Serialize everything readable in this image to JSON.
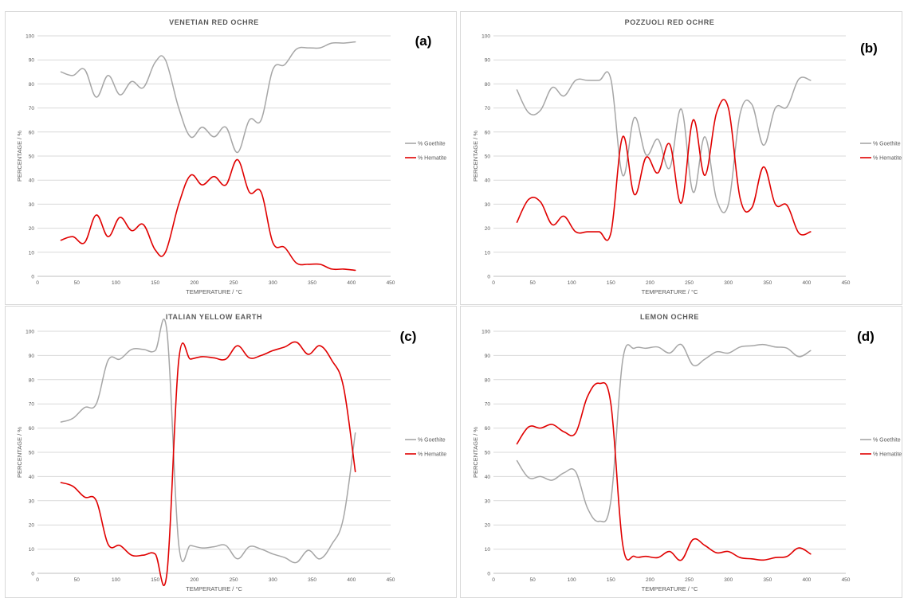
{
  "colors": {
    "goethite": "#a6a6a6",
    "hematite": "#e00000",
    "grid": "#d9d9d9",
    "axis": "#bfbfbf",
    "text": "#595959",
    "border": "#d9d9d9"
  },
  "chart_data": [
    {
      "type": "line",
      "panel": "(a)",
      "title": "VENETIAN RED OCHRE",
      "xlabel": "TEMPERATURE / °C",
      "ylabel": "PERCENTAGE / %",
      "xlim": [
        0,
        450
      ],
      "ylim": [
        0,
        100
      ],
      "xticks": [
        0,
        50,
        100,
        150,
        200,
        250,
        300,
        350,
        400,
        450
      ],
      "yticks": [
        0,
        10,
        20,
        30,
        40,
        50,
        60,
        70,
        80,
        90,
        100
      ],
      "grid": true,
      "legend": "right",
      "series": [
        {
          "name": "% Goethite",
          "x": [
            30,
            45,
            60,
            75,
            90,
            105,
            120,
            135,
            150,
            163,
            180,
            195,
            210,
            225,
            240,
            255,
            270,
            285,
            300,
            315,
            330,
            345,
            360,
            375,
            390,
            405
          ],
          "y": [
            85,
            83.5,
            86,
            74.5,
            83.5,
            75.5,
            81,
            78.5,
            89,
            90,
            70,
            58,
            62,
            58,
            62,
            51.5,
            65,
            65,
            86,
            88,
            94.5,
            95,
            95,
            97,
            97,
            97.5
          ]
        },
        {
          "name": "% Hematite",
          "x": [
            30,
            45,
            60,
            75,
            90,
            105,
            120,
            135,
            150,
            163,
            180,
            195,
            210,
            225,
            240,
            255,
            270,
            285,
            300,
            315,
            330,
            345,
            360,
            375,
            390,
            405
          ],
          "y": [
            15,
            16.5,
            14,
            25.5,
            16.5,
            24.5,
            19,
            21.5,
            11,
            10,
            30,
            42,
            38,
            41.5,
            38,
            48.5,
            35,
            35,
            14,
            12,
            5.5,
            5,
            5,
            3,
            3,
            2.5
          ]
        }
      ]
    },
    {
      "type": "line",
      "panel": "(b)",
      "title": "POZZUOLI RED OCHRE",
      "xlabel": "TEMPERATURE / °C",
      "ylabel": "PERCENTAGE / %",
      "xlim": [
        0,
        450
      ],
      "ylim": [
        0,
        100
      ],
      "xticks": [
        0,
        50,
        100,
        150,
        200,
        250,
        300,
        350,
        400,
        450
      ],
      "yticks": [
        0,
        10,
        20,
        30,
        40,
        50,
        60,
        70,
        80,
        90,
        100
      ],
      "grid": true,
      "legend": "right",
      "series": [
        {
          "name": "% Goethite",
          "x": [
            30,
            45,
            60,
            75,
            90,
            105,
            120,
            135,
            150,
            165,
            180,
            195,
            210,
            225,
            240,
            255,
            270,
            285,
            300,
            315,
            330,
            345,
            360,
            375,
            390,
            405
          ],
          "y": [
            77.5,
            68,
            69,
            78.5,
            75,
            81.5,
            81.5,
            81.5,
            82,
            42,
            66,
            50.5,
            57,
            45,
            69.5,
            35,
            58,
            32,
            30,
            67.5,
            71.5,
            54.5,
            70,
            70.5,
            82,
            81.5
          ]
        },
        {
          "name": "% Hematite",
          "x": [
            30,
            45,
            60,
            75,
            90,
            105,
            120,
            135,
            150,
            165,
            180,
            195,
            210,
            225,
            240,
            255,
            270,
            285,
            300,
            315,
            330,
            345,
            360,
            375,
            390,
            405
          ],
          "y": [
            22.5,
            32,
            31,
            21.5,
            25,
            18.5,
            18.5,
            18.5,
            18,
            58,
            34,
            49.5,
            43,
            55,
            30.5,
            65,
            42,
            68,
            70,
            32.5,
            28.5,
            45.5,
            30,
            29.5,
            18,
            18.5
          ]
        }
      ]
    },
    {
      "type": "line",
      "panel": "(c)",
      "title": "ITALIAN YELLOW EARTH",
      "xlabel": "TEMPERATURE / °C",
      "ylabel": "PERCENTAGE / %",
      "xlim": [
        0,
        450
      ],
      "ylim": [
        0,
        100
      ],
      "xticks": [
        0,
        50,
        100,
        150,
        200,
        250,
        300,
        350,
        400,
        450
      ],
      "yticks": [
        0,
        10,
        20,
        30,
        40,
        50,
        60,
        70,
        80,
        90,
        100
      ],
      "grid": true,
      "legend": "right",
      "series": [
        {
          "name": "% Goethite",
          "x": [
            30,
            45,
            60,
            75,
            90,
            105,
            120,
            135,
            150,
            165,
            180,
            195,
            210,
            225,
            240,
            255,
            270,
            285,
            300,
            315,
            330,
            345,
            360,
            375,
            390,
            405
          ],
          "y": [
            62.5,
            64,
            68.5,
            70,
            88,
            88.5,
            92.5,
            92.5,
            92,
            100,
            12,
            11.5,
            10.5,
            11,
            11.5,
            6,
            11,
            10,
            8,
            6.5,
            4.5,
            9.5,
            6,
            12,
            23,
            58
          ]
        },
        {
          "name": "% Hematite",
          "x": [
            30,
            45,
            60,
            75,
            90,
            105,
            120,
            135,
            150,
            165,
            180,
            195,
            210,
            225,
            240,
            255,
            270,
            285,
            300,
            315,
            330,
            345,
            360,
            375,
            390,
            405
          ],
          "y": [
            37.5,
            36,
            31.5,
            30,
            12,
            11.5,
            7.5,
            7.5,
            8,
            0,
            88,
            88.5,
            89.5,
            89,
            88.5,
            94,
            89,
            90,
            92,
            93.5,
            95.5,
            90.5,
            94,
            88,
            77,
            42
          ]
        }
      ]
    },
    {
      "type": "line",
      "panel": "(d)",
      "title": "LEMON OCHRE",
      "xlabel": "TEMPERATURE / °C",
      "ylabel": "PERCENTAGE / %",
      "xlim": [
        0,
        450
      ],
      "ylim": [
        0,
        100
      ],
      "xticks": [
        0,
        50,
        100,
        150,
        200,
        250,
        300,
        350,
        400,
        450
      ],
      "yticks": [
        0,
        10,
        20,
        30,
        40,
        50,
        60,
        70,
        80,
        90,
        100
      ],
      "grid": true,
      "legend": "right",
      "series": [
        {
          "name": "% Goethite",
          "x": [
            30,
            45,
            60,
            75,
            90,
            105,
            120,
            135,
            150,
            165,
            180,
            195,
            210,
            225,
            240,
            255,
            270,
            285,
            300,
            315,
            330,
            345,
            360,
            375,
            390,
            405
          ],
          "y": [
            46.5,
            39.5,
            40,
            38.5,
            41.5,
            42,
            27,
            21.5,
            30,
            88,
            93,
            93,
            93.5,
            91,
            94.5,
            86,
            88.5,
            91.5,
            91,
            93.5,
            94,
            94.5,
            93.5,
            93,
            89.5,
            92
          ]
        },
        {
          "name": "% Hematite",
          "x": [
            30,
            45,
            60,
            75,
            90,
            105,
            120,
            135,
            150,
            165,
            180,
            195,
            210,
            225,
            240,
            255,
            270,
            285,
            300,
            315,
            330,
            345,
            360,
            375,
            390,
            405
          ],
          "y": [
            53.5,
            60.5,
            60,
            61.5,
            58.5,
            58,
            73,
            78.5,
            70,
            12,
            7,
            7,
            6.5,
            9,
            5.5,
            14,
            11.5,
            8.5,
            9,
            6.5,
            6,
            5.5,
            6.5,
            7,
            10.5,
            8
          ]
        }
      ]
    }
  ]
}
